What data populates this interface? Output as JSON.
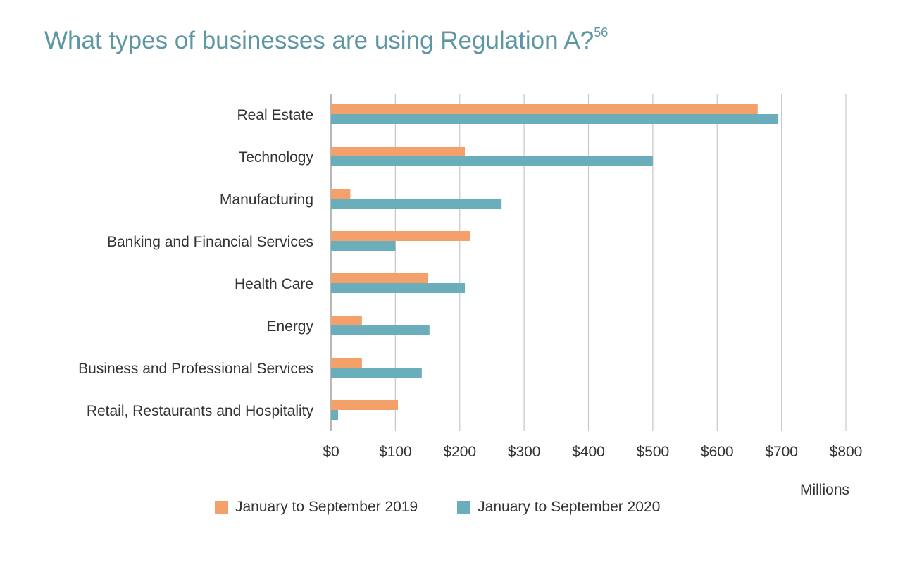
{
  "title": "What types of businesses are using Regulation A?",
  "title_footnote": "56",
  "colors": {
    "series_2019": "#f4a06a",
    "series_2020": "#6aaebc",
    "title": "#5f96a4",
    "grid": "#c8c8c8"
  },
  "chart_data": {
    "type": "bar",
    "orientation": "horizontal",
    "categories": [
      "Real Estate",
      "Technology",
      "Manufacturing",
      "Banking and Financial Services",
      "Health Care",
      "Energy",
      "Business and Professional Services",
      "Retail, Restaurants and Hospitality"
    ],
    "series": [
      {
        "name": "January to September 2019",
        "values": [
          663,
          208,
          30,
          216,
          151,
          48,
          48,
          104
        ]
      },
      {
        "name": "January to September 2020",
        "values": [
          695,
          500,
          265,
          100,
          208,
          153,
          141,
          11
        ]
      }
    ],
    "xlim": [
      0,
      800
    ],
    "xticks": [
      0,
      100,
      200,
      300,
      400,
      500,
      600,
      700,
      800
    ],
    "xtick_labels": [
      "$0",
      "$100",
      "$200",
      "$300",
      "$400",
      "$500",
      "$600",
      "$700",
      "$800"
    ],
    "xunit": "Millions",
    "grid": true,
    "legend_position": "bottom"
  }
}
